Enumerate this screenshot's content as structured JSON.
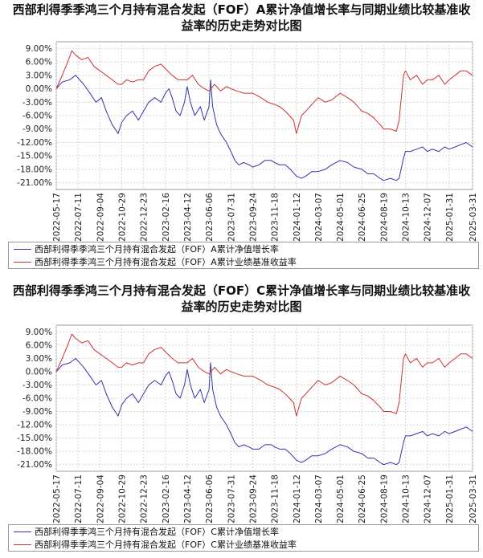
{
  "chart_data": [
    {
      "type": "line",
      "title": "西部利得季季鸿三个月持有混合发起（FOF）A累计净值增长率与同期业绩比较基准收益率的历史走势对比图",
      "xlabel": "",
      "ylabel": "",
      "x_ticks": [
        "2022-05-17",
        "2022-07-11",
        "2022-09-04",
        "2022-10-29",
        "2022-12-23",
        "2023-02-16",
        "2023-04-12",
        "2023-06-06",
        "2023-07-31",
        "2023-09-24",
        "2023-11-18",
        "2024-01-12",
        "2024-03-07",
        "2024-05-01",
        "2024-06-25",
        "2024-08-19",
        "2024-10-13",
        "2024-12-07",
        "2025-01-31",
        "2025-03-31"
      ],
      "y_ticks": [
        "9.00%",
        "6.00%",
        "3.00%",
        "0.00%",
        "-3.00%",
        "-6.00%",
        "-9.00%",
        "-12.00%",
        "-15.00%",
        "-18.00%",
        "-21.00%"
      ],
      "ylim": [
        -22.5,
        10.5
      ],
      "grid": true,
      "legend_placement": "bottom",
      "series": [
        {
          "name": "西部利得季季鸿三个月持有混合发起（FOF）A累计净值增长率",
          "color": "#3333aa",
          "x": [
            "2022-05-17",
            "2022-06-01",
            "2022-06-20",
            "2022-07-05",
            "2022-07-25",
            "2022-08-10",
            "2022-08-25",
            "2022-09-08",
            "2022-09-20",
            "2022-10-05",
            "2022-10-20",
            "2022-10-29",
            "2022-11-10",
            "2022-11-25",
            "2022-12-10",
            "2022-12-23",
            "2023-01-05",
            "2023-01-20",
            "2023-02-05",
            "2023-02-16",
            "2023-02-25",
            "2023-03-05",
            "2023-03-15",
            "2023-03-25",
            "2023-04-05",
            "2023-04-12",
            "2023-04-20",
            "2023-05-01",
            "2023-05-15",
            "2023-05-25",
            "2023-06-06",
            "2023-06-10",
            "2023-06-15",
            "2023-06-25",
            "2023-07-05",
            "2023-07-20",
            "2023-07-31",
            "2023-08-10",
            "2023-08-20",
            "2023-09-01",
            "2023-09-15",
            "2023-09-24",
            "2023-10-10",
            "2023-10-25",
            "2023-11-10",
            "2023-11-18",
            "2023-12-01",
            "2023-12-15",
            "2023-12-28",
            "2024-01-12",
            "2024-01-25",
            "2024-02-05",
            "2024-02-20",
            "2024-03-07",
            "2024-03-25",
            "2024-04-10",
            "2024-05-01",
            "2024-05-20",
            "2024-06-05",
            "2024-06-25",
            "2024-07-10",
            "2024-07-25",
            "2024-08-10",
            "2024-08-19",
            "2024-09-05",
            "2024-09-20",
            "2024-09-27",
            "2024-10-08",
            "2024-10-13",
            "2024-10-25",
            "2024-11-10",
            "2024-11-25",
            "2024-12-07",
            "2024-12-20",
            "2025-01-05",
            "2025-01-20",
            "2025-01-31",
            "2025-02-15",
            "2025-03-01",
            "2025-03-15",
            "2025-03-31"
          ],
          "values": [
            0.0,
            1.5,
            2.0,
            3.0,
            1.0,
            -1.0,
            -3.0,
            -2.0,
            -5.0,
            -8.0,
            -10.0,
            -7.5,
            -6.0,
            -5.0,
            -7.0,
            -5.0,
            -3.0,
            -2.0,
            -3.0,
            -1.0,
            0.0,
            -2.0,
            -5.0,
            -6.0,
            -3.0,
            0.5,
            -3.0,
            -6.0,
            -4.0,
            -7.0,
            -4.0,
            2.0,
            -4.0,
            -8.0,
            -10.0,
            -12.0,
            -14.0,
            -16.0,
            -17.0,
            -16.5,
            -17.0,
            -17.5,
            -17.0,
            -16.0,
            -16.0,
            -16.5,
            -17.0,
            -17.0,
            -18.0,
            -19.5,
            -20.0,
            -19.5,
            -18.5,
            -18.5,
            -18.0,
            -17.0,
            -16.0,
            -16.5,
            -17.5,
            -18.0,
            -19.0,
            -19.0,
            -20.0,
            -20.5,
            -20.0,
            -20.5,
            -20.0,
            -15.5,
            -14.0,
            -14.0,
            -13.5,
            -13.0,
            -14.0,
            -13.5,
            -14.0,
            -13.0,
            -13.5,
            -13.0,
            -12.5,
            -12.0,
            -13.0
          ]
        },
        {
          "name": "西部利得季季鸿三个月持有混合发起（FOF）A累计业绩基准收益率",
          "color": "#cc3333",
          "x": [
            "2022-05-17",
            "2022-06-01",
            "2022-06-15",
            "2022-06-25",
            "2022-07-05",
            "2022-07-20",
            "2022-08-05",
            "2022-08-20",
            "2022-09-04",
            "2022-09-20",
            "2022-10-05",
            "2022-10-20",
            "2022-10-29",
            "2022-11-10",
            "2022-11-25",
            "2022-12-10",
            "2022-12-23",
            "2023-01-05",
            "2023-01-20",
            "2023-02-05",
            "2023-02-16",
            "2023-03-05",
            "2023-03-20",
            "2023-04-12",
            "2023-04-25",
            "2023-05-10",
            "2023-05-25",
            "2023-06-06",
            "2023-06-20",
            "2023-07-05",
            "2023-07-20",
            "2023-07-31",
            "2023-08-15",
            "2023-09-01",
            "2023-09-24",
            "2023-10-15",
            "2023-11-01",
            "2023-11-18",
            "2023-12-01",
            "2023-12-15",
            "2024-01-05",
            "2024-01-12",
            "2024-01-25",
            "2024-02-05",
            "2024-02-20",
            "2024-03-07",
            "2024-03-25",
            "2024-04-10",
            "2024-05-01",
            "2024-05-20",
            "2024-06-05",
            "2024-06-25",
            "2024-07-10",
            "2024-07-25",
            "2024-08-10",
            "2024-08-19",
            "2024-09-05",
            "2024-09-20",
            "2024-09-27",
            "2024-10-08",
            "2024-10-13",
            "2024-10-25",
            "2024-11-10",
            "2024-11-25",
            "2024-12-07",
            "2024-12-20",
            "2025-01-05",
            "2025-01-20",
            "2025-01-31",
            "2025-02-15",
            "2025-03-01",
            "2025-03-15",
            "2025-03-31"
          ],
          "values": [
            0.0,
            3.0,
            6.0,
            8.5,
            7.5,
            6.5,
            7.0,
            5.0,
            4.0,
            3.0,
            2.0,
            1.0,
            1.0,
            2.0,
            1.5,
            2.0,
            2.0,
            4.0,
            5.0,
            5.5,
            4.5,
            3.0,
            2.0,
            2.0,
            3.0,
            1.0,
            0.0,
            -0.5,
            1.0,
            -0.5,
            0.5,
            0.0,
            -0.5,
            -1.0,
            -1.0,
            -2.0,
            -3.0,
            -3.5,
            -4.0,
            -5.0,
            -7.0,
            -10.0,
            -6.0,
            -5.0,
            -3.5,
            -2.0,
            -3.0,
            -2.5,
            -1.0,
            -2.0,
            -3.0,
            -5.0,
            -5.5,
            -6.5,
            -8.0,
            -9.0,
            -9.0,
            -9.5,
            -7.0,
            3.0,
            4.0,
            2.0,
            3.0,
            1.0,
            2.0,
            2.0,
            3.0,
            1.0,
            2.0,
            3.0,
            4.0,
            4.0,
            3.0
          ]
        }
      ]
    },
    {
      "type": "line",
      "title": "西部利得季季鸿三个月持有混合发起（FOF）C累计净值增长率与同期业绩比较基准收益率的历史走势对比图",
      "xlabel": "",
      "ylabel": "",
      "x_ticks": [
        "2022-05-17",
        "2022-07-11",
        "2022-09-04",
        "2022-10-29",
        "2022-12-23",
        "2023-02-16",
        "2023-04-12",
        "2023-06-06",
        "2023-07-31",
        "2023-09-24",
        "2023-11-18",
        "2024-01-12",
        "2024-03-07",
        "2024-05-01",
        "2024-06-25",
        "2024-08-19",
        "2024-10-13",
        "2024-12-07",
        "2025-01-31",
        "2025-03-31"
      ],
      "y_ticks": [
        "9.00%",
        "6.00%",
        "3.00%",
        "0.00%",
        "-3.00%",
        "-6.00%",
        "-9.00%",
        "-12.00%",
        "-15.00%",
        "-18.00%",
        "-21.00%"
      ],
      "ylim": [
        -22.5,
        10.5
      ],
      "grid": true,
      "legend_placement": "bottom",
      "series": [
        {
          "name": "西部利得季季鸿三个月持有混合发起（FOF）C累计净值增长率",
          "color": "#3333aa",
          "x": [
            "2022-05-17",
            "2022-06-01",
            "2022-06-20",
            "2022-07-05",
            "2022-07-25",
            "2022-08-10",
            "2022-08-25",
            "2022-09-08",
            "2022-09-20",
            "2022-10-05",
            "2022-10-20",
            "2022-10-29",
            "2022-11-10",
            "2022-11-25",
            "2022-12-10",
            "2022-12-23",
            "2023-01-05",
            "2023-01-20",
            "2023-02-05",
            "2023-02-16",
            "2023-02-25",
            "2023-03-05",
            "2023-03-15",
            "2023-03-25",
            "2023-04-05",
            "2023-04-12",
            "2023-04-20",
            "2023-05-01",
            "2023-05-15",
            "2023-05-25",
            "2023-06-06",
            "2023-06-10",
            "2023-06-15",
            "2023-06-25",
            "2023-07-05",
            "2023-07-20",
            "2023-07-31",
            "2023-08-10",
            "2023-08-20",
            "2023-09-01",
            "2023-09-15",
            "2023-09-24",
            "2023-10-10",
            "2023-10-25",
            "2023-11-10",
            "2023-11-18",
            "2023-12-01",
            "2023-12-15",
            "2023-12-28",
            "2024-01-12",
            "2024-01-25",
            "2024-02-05",
            "2024-02-20",
            "2024-03-07",
            "2024-03-25",
            "2024-04-10",
            "2024-05-01",
            "2024-05-20",
            "2024-06-05",
            "2024-06-25",
            "2024-07-10",
            "2024-07-25",
            "2024-08-10",
            "2024-08-19",
            "2024-09-05",
            "2024-09-20",
            "2024-09-27",
            "2024-10-08",
            "2024-10-13",
            "2024-10-25",
            "2024-11-10",
            "2024-11-25",
            "2024-12-07",
            "2024-12-20",
            "2025-01-05",
            "2025-01-20",
            "2025-01-31",
            "2025-02-15",
            "2025-03-01",
            "2025-03-15",
            "2025-03-31"
          ],
          "values": [
            0.0,
            1.5,
            2.0,
            3.0,
            1.0,
            -1.0,
            -3.0,
            -2.0,
            -5.0,
            -8.0,
            -10.0,
            -7.5,
            -6.0,
            -5.0,
            -7.0,
            -5.0,
            -3.0,
            -2.0,
            -3.0,
            -1.0,
            0.0,
            -2.0,
            -5.0,
            -6.0,
            -3.0,
            0.5,
            -3.0,
            -6.0,
            -4.0,
            -7.0,
            -4.0,
            2.0,
            -4.0,
            -8.0,
            -10.0,
            -12.0,
            -14.0,
            -16.0,
            -17.0,
            -16.5,
            -17.0,
            -17.5,
            -17.5,
            -16.5,
            -16.5,
            -17.0,
            -17.5,
            -17.5,
            -18.5,
            -20.0,
            -20.5,
            -20.0,
            -19.0,
            -19.0,
            -18.5,
            -17.5,
            -16.5,
            -17.0,
            -18.0,
            -18.5,
            -19.5,
            -19.5,
            -20.5,
            -21.0,
            -20.5,
            -21.0,
            -20.5,
            -16.0,
            -14.5,
            -14.5,
            -14.0,
            -13.5,
            -14.5,
            -14.0,
            -14.5,
            -13.5,
            -14.0,
            -13.5,
            -13.0,
            -12.5,
            -13.5
          ]
        },
        {
          "name": "西部利得季季鸿三个月持有混合发起（FOF）C累计业绩基准收益率",
          "color": "#cc3333",
          "x": [
            "2022-05-17",
            "2022-06-01",
            "2022-06-15",
            "2022-06-25",
            "2022-07-05",
            "2022-07-20",
            "2022-08-05",
            "2022-08-20",
            "2022-09-04",
            "2022-09-20",
            "2022-10-05",
            "2022-10-20",
            "2022-10-29",
            "2022-11-10",
            "2022-11-25",
            "2022-12-10",
            "2022-12-23",
            "2023-01-05",
            "2023-01-20",
            "2023-02-05",
            "2023-02-16",
            "2023-03-05",
            "2023-03-20",
            "2023-04-12",
            "2023-04-25",
            "2023-05-10",
            "2023-05-25",
            "2023-06-06",
            "2023-06-20",
            "2023-07-05",
            "2023-07-20",
            "2023-07-31",
            "2023-08-15",
            "2023-09-01",
            "2023-09-24",
            "2023-10-15",
            "2023-11-01",
            "2023-11-18",
            "2023-12-01",
            "2023-12-15",
            "2024-01-05",
            "2024-01-12",
            "2024-01-25",
            "2024-02-05",
            "2024-02-20",
            "2024-03-07",
            "2024-03-25",
            "2024-04-10",
            "2024-05-01",
            "2024-05-20",
            "2024-06-05",
            "2024-06-25",
            "2024-07-10",
            "2024-07-25",
            "2024-08-10",
            "2024-08-19",
            "2024-09-05",
            "2024-09-20",
            "2024-09-27",
            "2024-10-08",
            "2024-10-13",
            "2024-10-25",
            "2024-11-10",
            "2024-11-25",
            "2024-12-07",
            "2024-12-20",
            "2025-01-05",
            "2025-01-20",
            "2025-01-31",
            "2025-02-15",
            "2025-03-01",
            "2025-03-15",
            "2025-03-31"
          ],
          "values": [
            0.0,
            3.0,
            6.0,
            8.5,
            7.5,
            6.5,
            7.0,
            5.0,
            4.0,
            3.0,
            2.0,
            1.0,
            1.0,
            2.0,
            1.5,
            2.0,
            2.0,
            4.0,
            5.0,
            5.5,
            4.5,
            3.0,
            2.0,
            2.0,
            3.0,
            1.0,
            0.0,
            -0.5,
            1.0,
            -0.5,
            0.5,
            0.0,
            -0.5,
            -1.0,
            -1.0,
            -2.0,
            -3.0,
            -3.5,
            -4.0,
            -5.0,
            -7.0,
            -10.0,
            -6.0,
            -5.0,
            -3.5,
            -2.0,
            -3.0,
            -2.5,
            -1.0,
            -2.0,
            -3.0,
            -5.0,
            -5.5,
            -6.5,
            -8.0,
            -9.0,
            -9.0,
            -9.5,
            -7.0,
            3.0,
            4.0,
            2.0,
            3.0,
            1.0,
            2.0,
            2.0,
            3.0,
            1.0,
            2.0,
            3.0,
            4.0,
            4.0,
            3.0
          ]
        }
      ]
    }
  ]
}
